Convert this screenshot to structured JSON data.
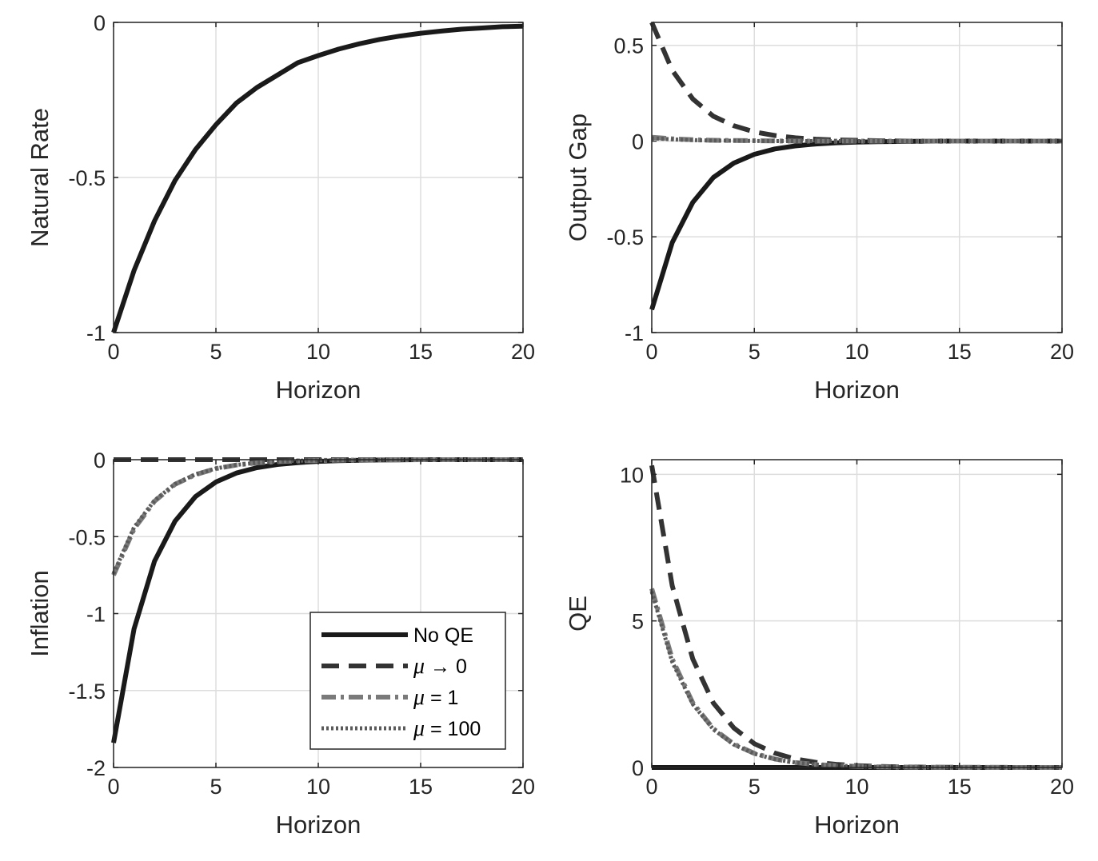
{
  "colors": {
    "no_qe": "#1a1a1a",
    "mu_to_0": "#333333",
    "mu_1": "#7a7a7a",
    "mu_100": "#5a5a5a",
    "grid": "#dddddd",
    "axes": "#262626"
  },
  "chart_data": [
    {
      "type": "line",
      "xlabel": "Horizon",
      "ylabel": "Natural Rate",
      "xlim": [
        0,
        20
      ],
      "ylim": [
        -1,
        0
      ],
      "xticks": [
        "0",
        "5",
        "10",
        "15",
        "20"
      ],
      "yticks": [
        "-1",
        "-0.5",
        "0"
      ],
      "grid": true,
      "legend": null,
      "series": [
        {
          "style": "solid",
          "values": [
            -1.0,
            -0.8,
            -0.64,
            -0.51,
            -0.41,
            -0.33,
            -0.26,
            -0.21,
            -0.17,
            -0.13,
            -0.107,
            -0.086,
            -0.069,
            -0.055,
            -0.044,
            -0.035,
            -0.028,
            -0.022,
            -0.018,
            -0.014,
            -0.012
          ]
        }
      ]
    },
    {
      "type": "line",
      "xlabel": "Horizon",
      "ylabel": "Output Gap",
      "xlim": [
        0,
        20
      ],
      "ylim": [
        -1,
        0.62
      ],
      "xticks": [
        "0",
        "5",
        "10",
        "15",
        "20"
      ],
      "yticks": [
        "-1",
        "-0.5",
        "0",
        "0.5"
      ],
      "grid": true,
      "legend": null,
      "series": [
        {
          "style": "solid",
          "values": [
            -0.88,
            -0.53,
            -0.32,
            -0.19,
            -0.115,
            -0.069,
            -0.041,
            -0.025,
            -0.015,
            -0.009,
            -0.005,
            -0.003,
            -0.002,
            -0.001,
            0,
            0,
            0,
            0,
            0,
            0,
            0
          ]
        },
        {
          "style": "dash",
          "values": [
            0.62,
            0.37,
            0.22,
            0.13,
            0.08,
            0.048,
            0.029,
            0.017,
            0.01,
            0.006,
            0.004,
            0.002,
            0.001,
            0,
            0,
            0,
            0,
            0,
            0,
            0,
            0
          ]
        },
        {
          "style": "dashdot",
          "values": [
            0.02,
            0.012,
            0.007,
            0.004,
            0.003,
            0.002,
            0.001,
            0,
            0,
            0,
            0,
            0,
            0,
            0,
            0,
            0,
            0,
            0,
            0,
            0,
            0
          ]
        },
        {
          "style": "dot",
          "values": [
            0.015,
            0.009,
            0.005,
            0.003,
            0.002,
            0.001,
            0,
            0,
            0,
            0,
            0,
            0,
            0,
            0,
            0,
            0,
            0,
            0,
            0,
            0,
            0
          ]
        }
      ]
    },
    {
      "type": "line",
      "xlabel": "Horizon",
      "ylabel": "Inflation",
      "xlim": [
        0,
        20
      ],
      "ylim": [
        -2,
        0
      ],
      "xticks": [
        "0",
        "5",
        "10",
        "15",
        "20"
      ],
      "yticks": [
        "-2",
        "-1.5",
        "-1",
        "-0.5",
        "0"
      ],
      "grid": true,
      "legend": {
        "position": "bottom-right",
        "entries": [
          {
            "prefix": "",
            "mu": "",
            "suffix": "No QE",
            "style": "solid"
          },
          {
            "prefix": "",
            "mu": "μ",
            "suffix": " → 0",
            "style": "dash"
          },
          {
            "prefix": "",
            "mu": "μ",
            "suffix": " = 1",
            "style": "dashdot"
          },
          {
            "prefix": "",
            "mu": "μ",
            "suffix": " = 100",
            "style": "dot"
          }
        ]
      },
      "series": [
        {
          "style": "solid",
          "values": [
            -1.84,
            -1.1,
            -0.66,
            -0.4,
            -0.24,
            -0.145,
            -0.087,
            -0.052,
            -0.031,
            -0.019,
            -0.011,
            -0.007,
            -0.004,
            -0.002,
            -0.001,
            0,
            0,
            0,
            0,
            0,
            0
          ]
        },
        {
          "style": "dash",
          "values": [
            0,
            0,
            0,
            0,
            0,
            0,
            0,
            0,
            0,
            0,
            0,
            0,
            0,
            0,
            0,
            0,
            0,
            0,
            0,
            0,
            0
          ]
        },
        {
          "style": "dashdot",
          "values": [
            -0.75,
            -0.45,
            -0.27,
            -0.16,
            -0.097,
            -0.058,
            -0.035,
            -0.021,
            -0.013,
            -0.008,
            -0.005,
            -0.003,
            -0.002,
            -0.001,
            0,
            0,
            0,
            0,
            0,
            0,
            0
          ]
        },
        {
          "style": "dot",
          "values": [
            -0.74,
            -0.44,
            -0.265,
            -0.158,
            -0.095,
            -0.057,
            -0.034,
            -0.02,
            -0.012,
            -0.007,
            -0.004,
            -0.003,
            -0.002,
            -0.001,
            0,
            0,
            0,
            0,
            0,
            0,
            0
          ]
        }
      ]
    },
    {
      "type": "line",
      "xlabel": "Horizon",
      "ylabel": "QE",
      "xlim": [
        0,
        20
      ],
      "ylim": [
        0,
        10.5
      ],
      "xticks": [
        "0",
        "5",
        "10",
        "15",
        "20"
      ],
      "yticks": [
        "0",
        "5",
        "10"
      ],
      "grid": true,
      "legend": null,
      "series": [
        {
          "style": "solid",
          "values": [
            0,
            0,
            0,
            0,
            0,
            0,
            0,
            0,
            0,
            0,
            0,
            0,
            0,
            0,
            0,
            0,
            0,
            0,
            0,
            0,
            0
          ]
        },
        {
          "style": "dash",
          "values": [
            10.3,
            6.2,
            3.7,
            2.2,
            1.35,
            0.81,
            0.49,
            0.29,
            0.175,
            0.105,
            0.063,
            0.038,
            0.023,
            0.014,
            0.008,
            0.005,
            0.003,
            0.002,
            0.001,
            0,
            0
          ]
        },
        {
          "style": "dashdot",
          "values": [
            6.1,
            3.7,
            2.2,
            1.32,
            0.8,
            0.48,
            0.29,
            0.17,
            0.1,
            0.062,
            0.037,
            0.022,
            0.013,
            0.008,
            0.005,
            0.003,
            0.002,
            0.001,
            0,
            0,
            0
          ]
        },
        {
          "style": "dot",
          "values": [
            6.0,
            3.6,
            2.16,
            1.3,
            0.78,
            0.47,
            0.28,
            0.168,
            0.1,
            0.06,
            0.036,
            0.022,
            0.013,
            0.008,
            0.005,
            0.003,
            0.002,
            0.001,
            0,
            0,
            0
          ]
        }
      ]
    }
  ]
}
